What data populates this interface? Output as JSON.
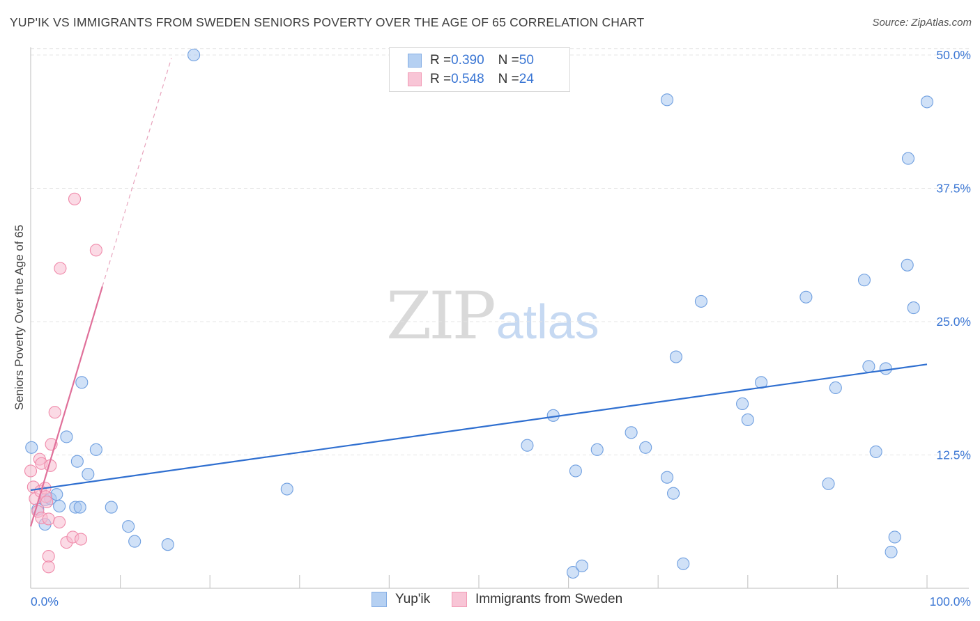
{
  "header": {
    "title": "YUP'IK VS IMMIGRANTS FROM SWEDEN SENIORS POVERTY OVER THE AGE OF 65 CORRELATION CHART",
    "source": "Source: ZipAtlas.com"
  },
  "watermark": {
    "zip": "ZIP",
    "atlas": "atlas"
  },
  "legend_stats": [
    {
      "r_label": "R = ",
      "r_value": "0.390",
      "n_label": "N = ",
      "n_value": "50",
      "color": "#6f9fe0"
    },
    {
      "r_label": "R = ",
      "r_value": "0.548",
      "n_label": "N = ",
      "n_value": "24",
      "color": "#f08aaa"
    }
  ],
  "chart_data": {
    "type": "scatter",
    "title": "YUP'IK VS IMMIGRANTS FROM SWEDEN SENIORS POVERTY OVER THE AGE OF 65 CORRELATION CHART",
    "xlabel": "",
    "ylabel": "Seniors Poverty Over the Age of 65",
    "xlim": [
      0,
      100
    ],
    "ylim": [
      0,
      51
    ],
    "x_tick_labels": [
      "0.0%",
      "100.0%"
    ],
    "y_ticks": [
      12.5,
      25.0,
      37.5,
      50.0
    ],
    "y_tick_labels": [
      "12.5%",
      "25.0%",
      "37.5%",
      "50.0%"
    ],
    "grid": true,
    "series": [
      {
        "name": "Yup'ik",
        "color": "#6f9fe0",
        "fill": "#a9c8f0",
        "r": 0.39,
        "n": 50,
        "points": [
          [
            0.1,
            13.2
          ],
          [
            0.8,
            7.4
          ],
          [
            1.6,
            8.3
          ],
          [
            1.6,
            6.0
          ],
          [
            2.2,
            8.4
          ],
          [
            2.9,
            8.8
          ],
          [
            3.2,
            7.7
          ],
          [
            4.0,
            14.2
          ],
          [
            5.0,
            7.6
          ],
          [
            5.2,
            11.9
          ],
          [
            5.5,
            7.6
          ],
          [
            5.7,
            19.3
          ],
          [
            6.4,
            10.7
          ],
          [
            7.3,
            13.0
          ],
          [
            9.0,
            7.6
          ],
          [
            10.9,
            5.8
          ],
          [
            11.6,
            4.4
          ],
          [
            15.3,
            4.1
          ],
          [
            18.2,
            50.0
          ],
          [
            28.6,
            9.3
          ],
          [
            55.4,
            13.4
          ],
          [
            58.3,
            16.2
          ],
          [
            60.5,
            1.5
          ],
          [
            60.8,
            11.0
          ],
          [
            61.5,
            2.1
          ],
          [
            63.2,
            13.0
          ],
          [
            67.0,
            14.6
          ],
          [
            68.6,
            13.2
          ],
          [
            71.0,
            45.8
          ],
          [
            71.0,
            10.4
          ],
          [
            71.7,
            8.9
          ],
          [
            72.0,
            21.7
          ],
          [
            72.8,
            2.3
          ],
          [
            74.8,
            26.9
          ],
          [
            79.4,
            17.3
          ],
          [
            80.0,
            15.8
          ],
          [
            81.5,
            19.3
          ],
          [
            86.5,
            27.3
          ],
          [
            89.0,
            9.8
          ],
          [
            89.8,
            18.8
          ],
          [
            93.0,
            28.9
          ],
          [
            93.5,
            20.8
          ],
          [
            94.3,
            12.8
          ],
          [
            95.4,
            20.6
          ],
          [
            96.0,
            3.4
          ],
          [
            96.4,
            4.8
          ],
          [
            97.8,
            30.3
          ],
          [
            97.9,
            40.3
          ],
          [
            98.5,
            26.3
          ],
          [
            100.0,
            45.6
          ]
        ],
        "trend": {
          "x": [
            0,
            100
          ],
          "y": [
            9.2,
            21.0
          ]
        }
      },
      {
        "name": "Immigrants from Sweden",
        "color": "#f08aaa",
        "fill": "#f7bcd0",
        "r": 0.548,
        "n": 24,
        "points": [
          [
            0.0,
            11.0
          ],
          [
            0.3,
            9.5
          ],
          [
            0.5,
            8.4
          ],
          [
            0.8,
            7.2
          ],
          [
            1.0,
            12.1
          ],
          [
            1.1,
            9.1
          ],
          [
            1.2,
            11.7
          ],
          [
            1.2,
            6.6
          ],
          [
            1.6,
            9.4
          ],
          [
            1.7,
            8.6
          ],
          [
            1.8,
            8.1
          ],
          [
            2.0,
            6.5
          ],
          [
            2.0,
            3.0
          ],
          [
            2.0,
            2.0
          ],
          [
            2.2,
            11.5
          ],
          [
            2.3,
            13.5
          ],
          [
            2.7,
            16.5
          ],
          [
            3.2,
            6.2
          ],
          [
            3.3,
            30.0
          ],
          [
            4.0,
            4.3
          ],
          [
            4.7,
            4.8
          ],
          [
            4.9,
            36.5
          ],
          [
            5.6,
            4.6
          ],
          [
            7.3,
            31.7
          ]
        ],
        "trend_solid": {
          "x": [
            0,
            8.0
          ],
          "y": [
            5.8,
            28.3
          ]
        },
        "trend_dashed": {
          "x": [
            8.0,
            15.7
          ],
          "y": [
            28.3,
            49.7
          ]
        }
      }
    ]
  }
}
